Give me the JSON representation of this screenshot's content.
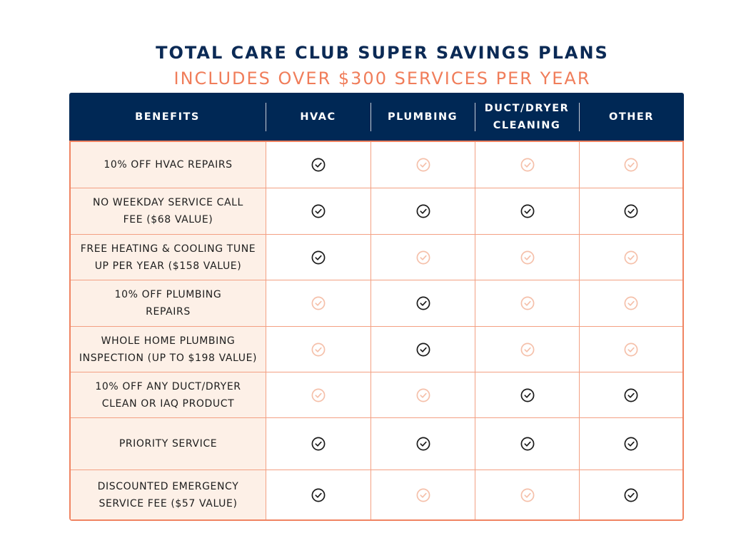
{
  "title": "TOTAL CARE CLUB SUPER SAVINGS PLANS",
  "subtitle": "INCLUDES OVER $300 SERVICES PER YEAR",
  "colors": {
    "navy": "#002855",
    "accent": "#f07d5a",
    "benefit_bg": "#fdf0e7",
    "check_on": "#1a1a1a",
    "check_off": "#f5c0aa"
  },
  "columns": [
    "BENEFITS",
    "HVAC",
    "PLUMBING",
    "DUCT/DRYER CLEANING",
    "OTHER"
  ],
  "rows": [
    {
      "benefit": "10% OFF HVAC REPAIRS",
      "included": [
        true,
        false,
        false,
        false
      ]
    },
    {
      "benefit": "NO WEEKDAY SERVICE CALL FEE ($68 VALUE)",
      "included": [
        true,
        true,
        true,
        true
      ]
    },
    {
      "benefit": "FREE HEATING & COOLING TUNE UP PER YEAR ($158 VALUE)",
      "included": [
        true,
        false,
        false,
        false
      ]
    },
    {
      "benefit": "10% OFF PLUMBING REPAIRS",
      "included": [
        false,
        true,
        false,
        false
      ]
    },
    {
      "benefit": "WHOLE HOME PLUMBING INSPECTION (UP TO $198 VALUE)",
      "included": [
        false,
        true,
        false,
        false
      ]
    },
    {
      "benefit": "10% OFF ANY DUCT/DRYER CLEAN OR IAQ PRODUCT",
      "included": [
        false,
        false,
        true,
        true
      ]
    },
    {
      "benefit": "PRIORITY SERVICE",
      "included": [
        true,
        true,
        true,
        true
      ]
    },
    {
      "benefit": "DISCOUNTED EMERGENCY SERVICE FEE ($57 VALUE)",
      "included": [
        true,
        false,
        false,
        true
      ]
    }
  ],
  "icons": {
    "check": "check-circle-icon"
  }
}
